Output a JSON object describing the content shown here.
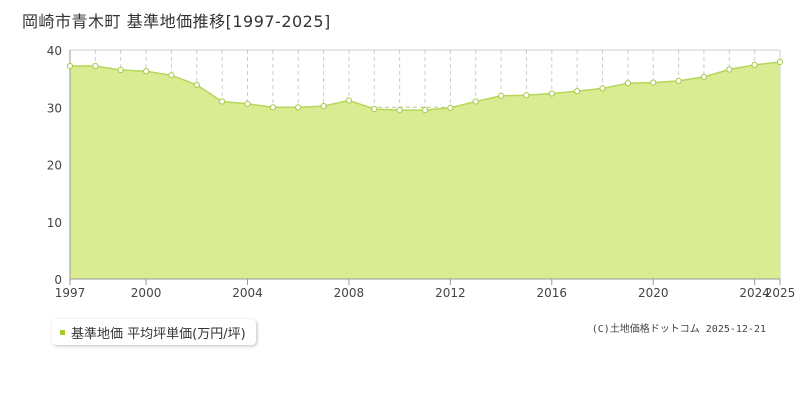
{
  "colors": {
    "fill": "#d9ec91",
    "line": "#b8d65a",
    "grid": "#cccccc",
    "axis": "#999999",
    "marker_fill": "#ffffff",
    "legend_swatch": "#a6cc2e",
    "text": "#333333"
  },
  "chart_data": {
    "type": "area",
    "title": "岡崎市青木町 基準地価推移[1997-2025]",
    "xlabel": "",
    "ylabel": "",
    "x_range": [
      1997,
      2025
    ],
    "ylim": [
      0,
      40
    ],
    "yticks": [
      0,
      10,
      20,
      30,
      40
    ],
    "xtick_labels": [
      "1997",
      "2000",
      "2004",
      "2008",
      "2012",
      "2016",
      "2020",
      "2024",
      "2025"
    ],
    "grid": true,
    "legend_position": "bottom-left",
    "series": [
      {
        "name": "基準地価 平均坪単価(万円/坪)",
        "x": [
          1997,
          1998,
          1999,
          2000,
          2001,
          2002,
          2003,
          2004,
          2005,
          2006,
          2007,
          2008,
          2009,
          2010,
          2011,
          2012,
          2013,
          2014,
          2015,
          2016,
          2017,
          2018,
          2019,
          2020,
          2021,
          2022,
          2023,
          2024,
          2025
        ],
        "values": [
          37.2,
          37.2,
          36.5,
          36.3,
          35.6,
          33.9,
          31.0,
          30.6,
          30.0,
          30.0,
          30.2,
          31.2,
          29.7,
          29.5,
          29.5,
          29.9,
          31.0,
          32.0,
          32.1,
          32.4,
          32.8,
          33.3,
          34.2,
          34.3,
          34.6,
          35.3,
          36.6,
          37.4,
          37.9
        ]
      }
    ]
  },
  "legend": {
    "label": "基準地価 平均坪単価(万円/坪)"
  },
  "credit": "(C)土地価格ドットコム 2025-12-21"
}
